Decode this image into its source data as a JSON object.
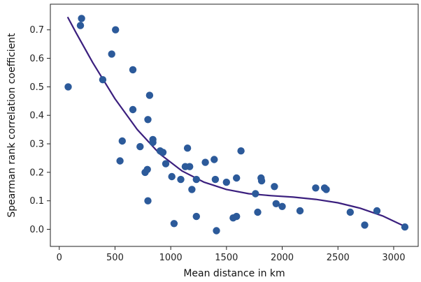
{
  "chart_data": {
    "type": "scatter",
    "xlabel": "Mean distance in km",
    "ylabel": "Spearman rank correlation coefficient",
    "xlim": [
      -80,
      3220
    ],
    "ylim": [
      -0.06,
      0.79
    ],
    "xticks": [
      0,
      500,
      1000,
      1500,
      2000,
      2500,
      3000
    ],
    "yticks": [
      0.0,
      0.1,
      0.2,
      0.3,
      0.4,
      0.5,
      0.6,
      0.7
    ],
    "grid": false,
    "marker_color": "#2c5a9a",
    "fit_color": "#3b1f7e",
    "points": [
      [
        80,
        0.5
      ],
      [
        190,
        0.715
      ],
      [
        200,
        0.74
      ],
      [
        390,
        0.525
      ],
      [
        470,
        0.615
      ],
      [
        505,
        0.7
      ],
      [
        545,
        0.24
      ],
      [
        565,
        0.31
      ],
      [
        660,
        0.56
      ],
      [
        660,
        0.42
      ],
      [
        725,
        0.29
      ],
      [
        770,
        0.2
      ],
      [
        790,
        0.21
      ],
      [
        795,
        0.1
      ],
      [
        795,
        0.385
      ],
      [
        810,
        0.47
      ],
      [
        840,
        0.315
      ],
      [
        840,
        0.305
      ],
      [
        905,
        0.275
      ],
      [
        930,
        0.27
      ],
      [
        955,
        0.23
      ],
      [
        1010,
        0.185
      ],
      [
        1030,
        0.02
      ],
      [
        1090,
        0.175
      ],
      [
        1130,
        0.22
      ],
      [
        1150,
        0.285
      ],
      [
        1170,
        0.22
      ],
      [
        1190,
        0.14
      ],
      [
        1230,
        0.045
      ],
      [
        1230,
        0.175
      ],
      [
        1310,
        0.235
      ],
      [
        1390,
        0.245
      ],
      [
        1400,
        0.175
      ],
      [
        1410,
        -0.005
      ],
      [
        1500,
        0.165
      ],
      [
        1560,
        0.04
      ],
      [
        1590,
        0.045
      ],
      [
        1590,
        0.18
      ],
      [
        1630,
        0.275
      ],
      [
        1760,
        0.125
      ],
      [
        1780,
        0.06
      ],
      [
        1810,
        0.18
      ],
      [
        1815,
        0.17
      ],
      [
        1930,
        0.15
      ],
      [
        1945,
        0.09
      ],
      [
        2000,
        0.08
      ],
      [
        2160,
        0.065
      ],
      [
        2300,
        0.145
      ],
      [
        2380,
        0.145
      ],
      [
        2395,
        0.14
      ],
      [
        2610,
        0.06
      ],
      [
        2740,
        0.015
      ],
      [
        2850,
        0.065
      ],
      [
        3100,
        0.008
      ]
    ],
    "fit_line": [
      [
        75,
        0.745
      ],
      [
        150,
        0.69
      ],
      [
        300,
        0.585
      ],
      [
        500,
        0.458
      ],
      [
        700,
        0.35
      ],
      [
        900,
        0.265
      ],
      [
        1100,
        0.205
      ],
      [
        1300,
        0.165
      ],
      [
        1500,
        0.14
      ],
      [
        1700,
        0.125
      ],
      [
        1900,
        0.118
      ],
      [
        2100,
        0.113
      ],
      [
        2300,
        0.105
      ],
      [
        2500,
        0.093
      ],
      [
        2700,
        0.074
      ],
      [
        2900,
        0.047
      ],
      [
        3100,
        0.01
      ]
    ]
  }
}
